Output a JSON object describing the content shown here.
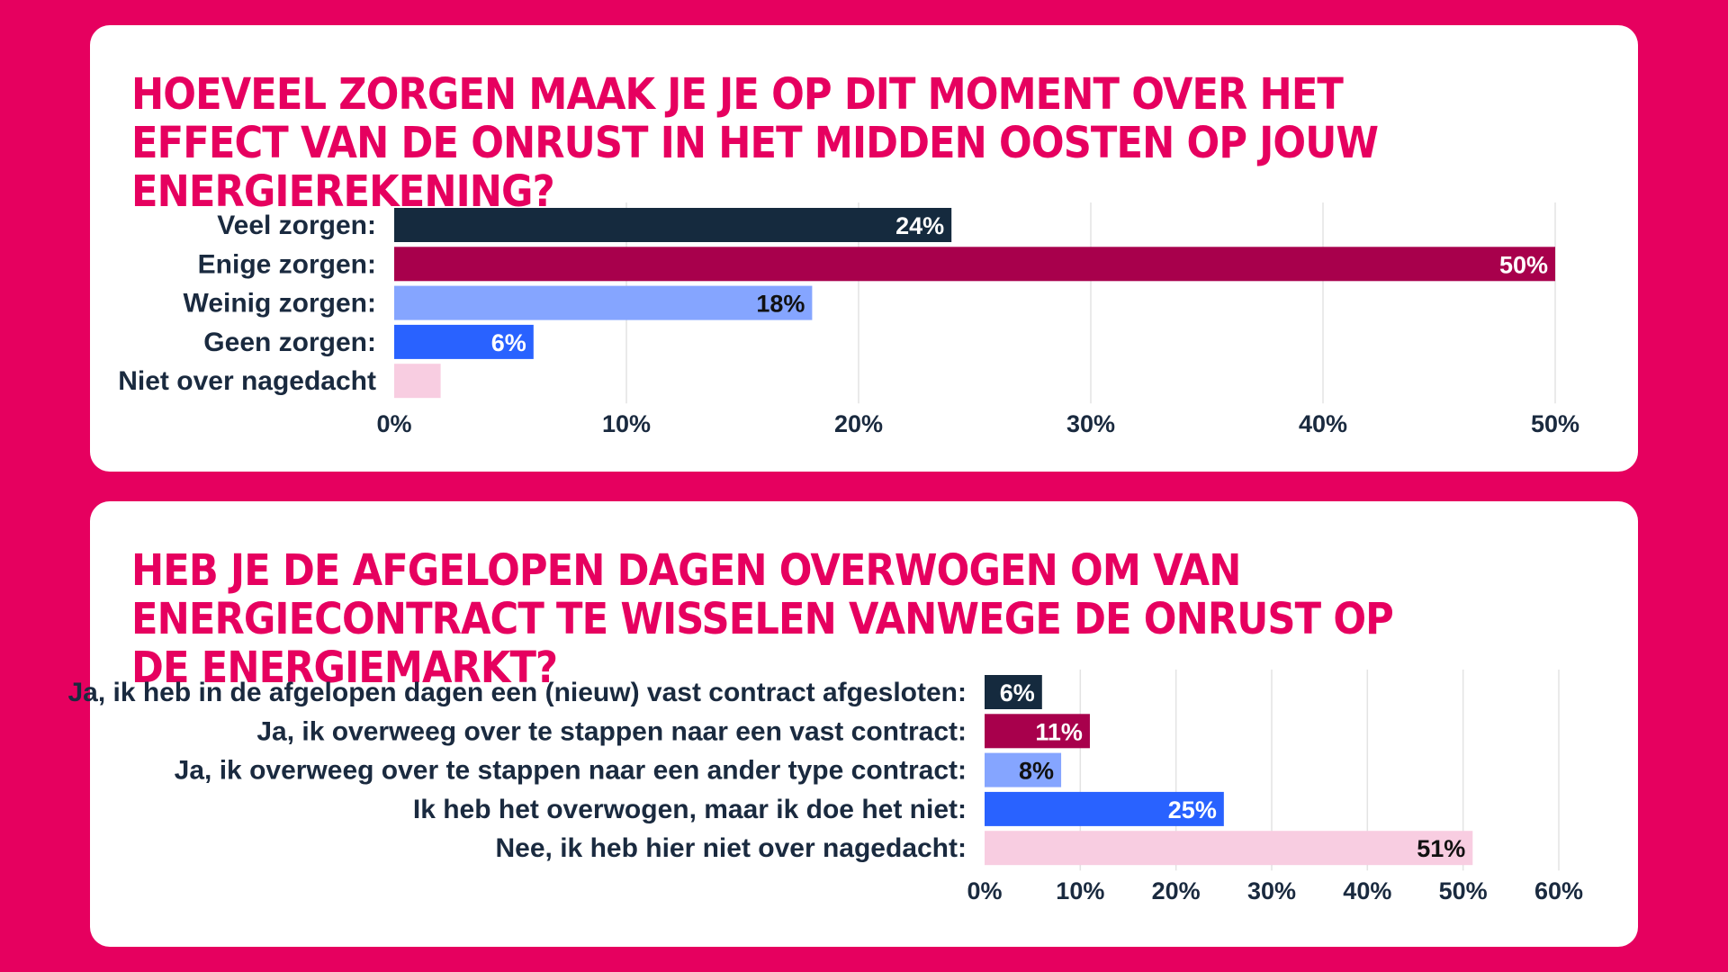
{
  "chart_data": [
    {
      "type": "bar",
      "orientation": "horizontal",
      "title": "HOEVEEL ZORGEN MAAK JE JE OP DIT MOMENT OVER HET EFFECT VAN DE ONRUST IN HET MIDDEN OOSTEN OP JOUW ENERGIEREKENING?",
      "categories": [
        "Veel zorgen:",
        "Enige zorgen:",
        "Weinig zorgen:",
        "Geen zorgen:",
        "Niet over nagedacht"
      ],
      "values": [
        24,
        50,
        18,
        6,
        2
      ],
      "data_labels": [
        "24%",
        "50%",
        "18%",
        "6%",
        ""
      ],
      "xlim": [
        0,
        50
      ],
      "x_ticks": [
        "0%",
        "10%",
        "20%",
        "30%",
        "40%",
        "50%"
      ],
      "grid": true,
      "colors": [
        "#152a3e",
        "#a8004c",
        "#85a5ff",
        "#2962ff",
        "#f8cde1"
      ],
      "label_colors": [
        "#ffffff",
        "#ffffff",
        "#111111",
        "#ffffff",
        "#111111"
      ]
    },
    {
      "type": "bar",
      "orientation": "horizontal",
      "title": "HEB JE DE AFGELOPEN DAGEN OVERWOGEN OM VAN ENERGIECONTRACT TE WISSELEN VANWEGE DE ONRUST OP DE ENERGIEMARKT?",
      "categories": [
        "Ja, ik heb in de afgelopen dagen een (nieuw) vast contract afgesloten:",
        "Ja, ik overweeg over te stappen naar een vast contract:",
        "Ja, ik overweeg over te stappen naar een ander type contract:",
        "Ik heb het overwogen, maar ik doe het niet:",
        "Nee, ik heb hier niet over nagedacht:"
      ],
      "values": [
        6,
        11,
        8,
        25,
        51
      ],
      "data_labels": [
        "6%",
        "11%",
        "8%",
        "25%",
        "51%"
      ],
      "xlim": [
        0,
        60
      ],
      "x_ticks": [
        "0%",
        "10%",
        "20%",
        "30%",
        "40%",
        "50%",
        "60%"
      ],
      "grid": true,
      "colors": [
        "#152a3e",
        "#a8004c",
        "#85a5ff",
        "#2962ff",
        "#f8cde1"
      ],
      "label_colors": [
        "#ffffff",
        "#ffffff",
        "#111111",
        "#ffffff",
        "#111111"
      ]
    }
  ],
  "colors": {
    "background": "#e6005f",
    "card": "#ffffff",
    "title": "#e6005f",
    "text": "#1a2a3f",
    "grid": "#e3e3e3"
  }
}
